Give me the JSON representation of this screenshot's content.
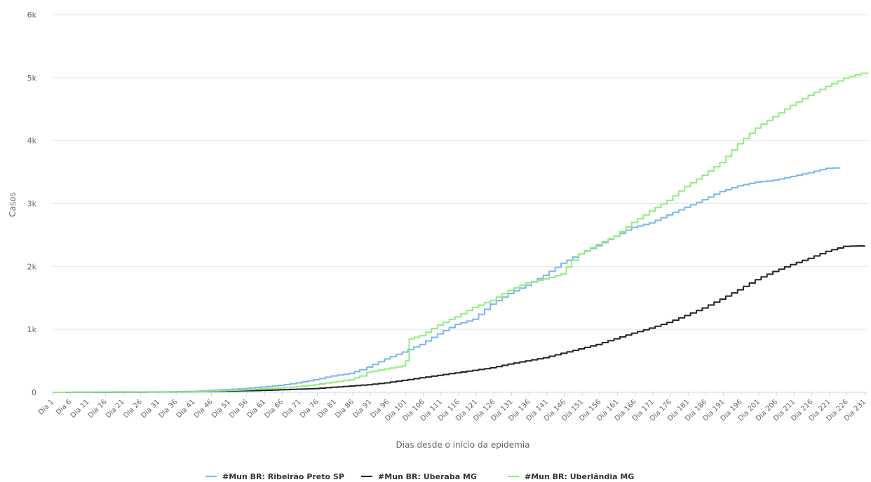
{
  "chart_data": {
    "type": "line",
    "xlabel": "Dias desde o início da epidemia",
    "ylabel": "Casos",
    "y_ticks": [
      "0",
      "1k",
      "2k",
      "3k",
      "4k",
      "5k",
      "6k"
    ],
    "ylim": [
      0,
      6000
    ],
    "x_range": [
      1,
      232
    ],
    "x_tick_step": 5,
    "x_tick_prefix": "Dia ",
    "grid": true,
    "legend_position": "bottom",
    "series": [
      {
        "name": "#Mun BR: Ribeirão Preto SP",
        "color": "#7cb5ec",
        "points": [
          [
            1,
            0
          ],
          [
            20,
            3
          ],
          [
            30,
            8
          ],
          [
            40,
            15
          ],
          [
            45,
            30
          ],
          [
            50,
            45
          ],
          [
            55,
            60
          ],
          [
            60,
            85
          ],
          [
            65,
            110
          ],
          [
            70,
            150
          ],
          [
            75,
            200
          ],
          [
            80,
            260
          ],
          [
            85,
            300
          ],
          [
            88,
            360
          ],
          [
            90,
            400
          ],
          [
            95,
            530
          ],
          [
            100,
            640
          ],
          [
            105,
            760
          ],
          [
            110,
            930
          ],
          [
            115,
            1080
          ],
          [
            120,
            1160
          ],
          [
            125,
            1400
          ],
          [
            130,
            1570
          ],
          [
            135,
            1700
          ],
          [
            140,
            1860
          ],
          [
            145,
            2050
          ],
          [
            150,
            2200
          ],
          [
            155,
            2330
          ],
          [
            160,
            2480
          ],
          [
            165,
            2620
          ],
          [
            170,
            2690
          ],
          [
            175,
            2820
          ],
          [
            180,
            2940
          ],
          [
            185,
            3060
          ],
          [
            190,
            3190
          ],
          [
            195,
            3280
          ],
          [
            200,
            3340
          ],
          [
            205,
            3370
          ],
          [
            210,
            3430
          ],
          [
            215,
            3490
          ],
          [
            220,
            3560
          ],
          [
            224,
            3570
          ]
        ]
      },
      {
        "name": "#Mun BR: Uberaba MG",
        "color": "#222222",
        "points": [
          [
            1,
            0
          ],
          [
            20,
            2
          ],
          [
            30,
            5
          ],
          [
            40,
            10
          ],
          [
            45,
            15
          ],
          [
            50,
            20
          ],
          [
            55,
            25
          ],
          [
            60,
            30
          ],
          [
            65,
            40
          ],
          [
            70,
            50
          ],
          [
            75,
            60
          ],
          [
            80,
            80
          ],
          [
            85,
            100
          ],
          [
            90,
            120
          ],
          [
            95,
            150
          ],
          [
            100,
            190
          ],
          [
            105,
            230
          ],
          [
            110,
            270
          ],
          [
            115,
            310
          ],
          [
            120,
            350
          ],
          [
            125,
            390
          ],
          [
            130,
            450
          ],
          [
            135,
            500
          ],
          [
            140,
            550
          ],
          [
            145,
            620
          ],
          [
            150,
            690
          ],
          [
            155,
            760
          ],
          [
            160,
            850
          ],
          [
            165,
            940
          ],
          [
            170,
            1020
          ],
          [
            175,
            1110
          ],
          [
            180,
            1220
          ],
          [
            185,
            1340
          ],
          [
            190,
            1480
          ],
          [
            195,
            1630
          ],
          [
            200,
            1790
          ],
          [
            205,
            1920
          ],
          [
            210,
            2030
          ],
          [
            215,
            2130
          ],
          [
            220,
            2240
          ],
          [
            225,
            2320
          ],
          [
            231,
            2330
          ]
        ]
      },
      {
        "name": "#Mun BR: Uberlândia MG",
        "color": "#90ed7d",
        "points": [
          [
            1,
            0
          ],
          [
            20,
            3
          ],
          [
            30,
            6
          ],
          [
            40,
            10
          ],
          [
            45,
            20
          ],
          [
            50,
            30
          ],
          [
            55,
            40
          ],
          [
            60,
            55
          ],
          [
            65,
            70
          ],
          [
            70,
            90
          ],
          [
            75,
            120
          ],
          [
            80,
            160
          ],
          [
            85,
            200
          ],
          [
            88,
            260
          ],
          [
            90,
            320
          ],
          [
            95,
            370
          ],
          [
            100,
            420
          ],
          [
            101,
            500
          ],
          [
            102,
            850
          ],
          [
            105,
            900
          ],
          [
            110,
            1070
          ],
          [
            115,
            1200
          ],
          [
            120,
            1350
          ],
          [
            125,
            1460
          ],
          [
            130,
            1620
          ],
          [
            135,
            1740
          ],
          [
            140,
            1800
          ],
          [
            145,
            1880
          ],
          [
            148,
            2100
          ],
          [
            150,
            2200
          ],
          [
            155,
            2350
          ],
          [
            160,
            2480
          ],
          [
            165,
            2700
          ],
          [
            170,
            2880
          ],
          [
            175,
            3050
          ],
          [
            180,
            3270
          ],
          [
            185,
            3450
          ],
          [
            190,
            3650
          ],
          [
            195,
            3950
          ],
          [
            200,
            4200
          ],
          [
            205,
            4380
          ],
          [
            210,
            4560
          ],
          [
            215,
            4720
          ],
          [
            220,
            4860
          ],
          [
            225,
            4990
          ],
          [
            230,
            5070
          ],
          [
            232,
            5060
          ]
        ]
      }
    ]
  }
}
